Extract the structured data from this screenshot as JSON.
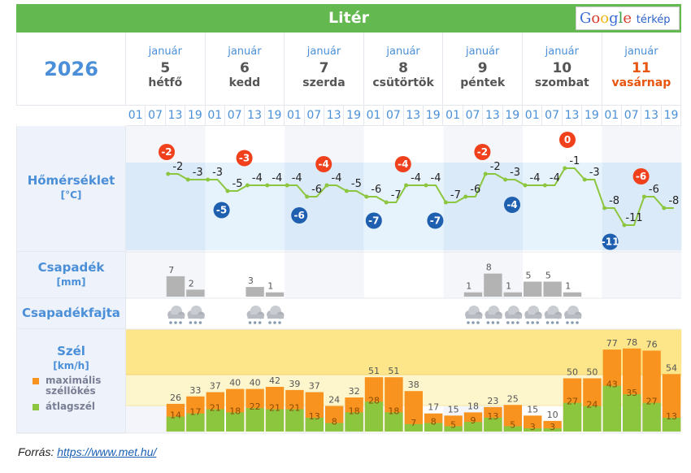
{
  "header": {
    "title": "Litér",
    "logo_google": "Google",
    "logo_suffix": "térkép",
    "year": "2026"
  },
  "days": [
    {
      "month": "január",
      "day": "5",
      "weekday": "hétfő"
    },
    {
      "month": "január",
      "day": "6",
      "weekday": "kedd"
    },
    {
      "month": "január",
      "day": "7",
      "weekday": "szerda"
    },
    {
      "month": "január",
      "day": "8",
      "weekday": "csütörtök"
    },
    {
      "month": "január",
      "day": "9",
      "weekday": "péntek"
    },
    {
      "month": "január",
      "day": "10",
      "weekday": "szombat"
    },
    {
      "month": "január",
      "day": "11",
      "weekday": "vasárnap",
      "weekend": true
    }
  ],
  "hours": [
    "01",
    "07",
    "13",
    "19"
  ],
  "labels": {
    "temp": "Hőmérséklet",
    "temp_unit": "[°C]",
    "precip": "Csapadék",
    "precip_unit": "[mm]",
    "precip_type": "Csapadékfajta",
    "wind": "Szél",
    "wind_unit": "[km/h]",
    "legend_gust": "maximális széllökés",
    "legend_avg": "átlagszél"
  },
  "colors": {
    "header": "#63b84f",
    "max": "#f0411c",
    "min": "#1f5fb0",
    "line": "#8cc63f",
    "gust": "#f7931e",
    "avg": "#8cc63f",
    "precip": "#b3b3b3",
    "weekend": "#e8550e"
  },
  "chart_data": {
    "type": "line",
    "start_slot": 2,
    "temperature": [
      -2,
      -3,
      -3,
      -5,
      -4,
      -4,
      -4,
      -6,
      -4,
      -5,
      -6,
      -7,
      -4,
      -4,
      -7,
      -6,
      -2,
      -3,
      -4,
      -4,
      -1,
      -3,
      -8,
      -11,
      -6,
      -8
    ],
    "daily_max": [
      -2,
      -3,
      -4,
      -4,
      -2,
      0,
      -6
    ],
    "daily_min": [
      null,
      -5,
      -6,
      -7,
      -7,
      -4,
      -11
    ],
    "precip": [
      {
        "slot": 2,
        "mm": 7
      },
      {
        "slot": 3,
        "mm": 2
      },
      {
        "slot": 6,
        "mm": 3
      },
      {
        "slot": 7,
        "mm": 1
      },
      {
        "slot": 17,
        "mm": 1
      },
      {
        "slot": 18,
        "mm": 8
      },
      {
        "slot": 19,
        "mm": 1
      },
      {
        "slot": 20,
        "mm": 5
      },
      {
        "slot": 21,
        "mm": 5
      },
      {
        "slot": 22,
        "mm": 1
      }
    ],
    "precip_type": "snow",
    "wind_gust": [
      26,
      33,
      37,
      40,
      40,
      42,
      39,
      37,
      24,
      32,
      51,
      51,
      38,
      17,
      15,
      18,
      23,
      25,
      15,
      10,
      50,
      50,
      77,
      78,
      76,
      54
    ],
    "wind_avg": [
      14,
      17,
      21,
      18,
      22,
      21,
      21,
      13,
      8,
      18,
      28,
      18,
      7,
      8,
      5,
      9,
      13,
      5,
      3,
      3,
      27,
      24,
      43,
      35,
      27,
      13
    ]
  },
  "footer": {
    "source_label": "Forrás:",
    "source_link": "https://www.met.hu/"
  }
}
